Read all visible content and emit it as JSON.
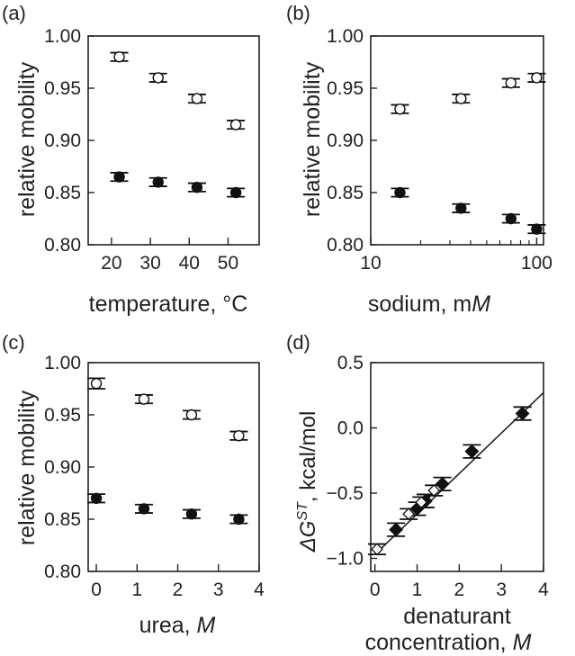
{
  "chart_data": [
    {
      "panel": "(a)",
      "type": "scatter",
      "xlabel": "temperature, °C",
      "ylabel": "relative mobility",
      "xlim": [
        14,
        58
      ],
      "ylim": [
        0.8,
        1.0
      ],
      "xticks": [
        20,
        30,
        40,
        50
      ],
      "yticks": [
        0.8,
        0.85,
        0.9,
        0.95,
        1.0
      ],
      "series": [
        {
          "marker": "open-circle",
          "x": [
            22,
            32,
            42,
            52
          ],
          "y": [
            0.98,
            0.96,
            0.94,
            0.915
          ],
          "err": [
            0.004,
            0.004,
            0.004,
            0.004
          ]
        },
        {
          "marker": "filled-circle",
          "x": [
            22,
            32,
            42,
            52
          ],
          "y": [
            0.865,
            0.86,
            0.855,
            0.85
          ],
          "err": [
            0.004,
            0.004,
            0.004,
            0.004
          ]
        }
      ]
    },
    {
      "panel": "(b)",
      "type": "scatter",
      "xlabel_parts": [
        "sodium, m",
        "M"
      ],
      "ylabel": "relative mobility",
      "xscale": "log",
      "xlim": [
        10,
        110
      ],
      "ylim": [
        0.8,
        1.0
      ],
      "xticks": [
        10,
        100
      ],
      "yticks": [
        0.8,
        0.85,
        0.9,
        0.95,
        1.0
      ],
      "series": [
        {
          "marker": "open-circle",
          "x": [
            15,
            35,
            70,
            100
          ],
          "y": [
            0.93,
            0.94,
            0.955,
            0.96
          ],
          "err": [
            0.004,
            0.004,
            0.004,
            0.004
          ]
        },
        {
          "marker": "filled-circle",
          "x": [
            15,
            35,
            70,
            100
          ],
          "y": [
            0.85,
            0.835,
            0.825,
            0.815
          ],
          "err": [
            0.004,
            0.004,
            0.004,
            0.004
          ]
        }
      ]
    },
    {
      "panel": "(c)",
      "type": "scatter",
      "xlabel_parts": [
        "urea, ",
        "M"
      ],
      "ylabel": "relative mobility",
      "xlim": [
        -0.2,
        4
      ],
      "ylim": [
        0.8,
        1.0
      ],
      "xticks": [
        0,
        1,
        2,
        3,
        4
      ],
      "yticks": [
        0.8,
        0.85,
        0.9,
        0.95,
        1.0
      ],
      "series": [
        {
          "marker": "open-circle",
          "x": [
            0,
            1.17,
            2.34,
            3.5
          ],
          "y": [
            0.98,
            0.965,
            0.95,
            0.93
          ],
          "err": [
            0.005,
            0.004,
            0.004,
            0.004
          ]
        },
        {
          "marker": "filled-circle",
          "x": [
            0,
            1.17,
            2.34,
            3.5
          ],
          "y": [
            0.87,
            0.86,
            0.855,
            0.85
          ],
          "err": [
            0.004,
            0.004,
            0.004,
            0.004
          ]
        }
      ]
    },
    {
      "panel": "(d)",
      "type": "scatter",
      "xlabel_line1": "denaturant",
      "xlabel_line2_parts": [
        "concentration, ",
        "M"
      ],
      "ylabel_parts": [
        "ΔG",
        "ST",
        ", kcal/mol"
      ],
      "xlim": [
        -0.1,
        4
      ],
      "ylim": [
        -1.1,
        0.5
      ],
      "xticks": [
        0,
        1,
        2,
        3,
        4
      ],
      "yticks": [
        -1.0,
        -0.5,
        0.0,
        0.5
      ],
      "fit_line": {
        "x": [
          0,
          4
        ],
        "y": [
          -0.97,
          0.27
        ]
      },
      "series": [
        {
          "marker": "filled-diamond",
          "x": [
            0.5,
            1.0,
            1.2,
            1.6,
            2.3,
            3.5
          ],
          "y": [
            -0.78,
            -0.62,
            -0.56,
            -0.43,
            -0.18,
            0.11
          ],
          "err": [
            0.05,
            0.05,
            0.05,
            0.05,
            0.05,
            0.05
          ]
        },
        {
          "marker": "open-diamond",
          "x": [
            0.05,
            0.8,
            1.1,
            1.4
          ],
          "y": [
            -0.93,
            -0.66,
            -0.57,
            -0.48
          ],
          "err": [
            0.04,
            0.04,
            0.04,
            0.04
          ]
        }
      ]
    }
  ]
}
